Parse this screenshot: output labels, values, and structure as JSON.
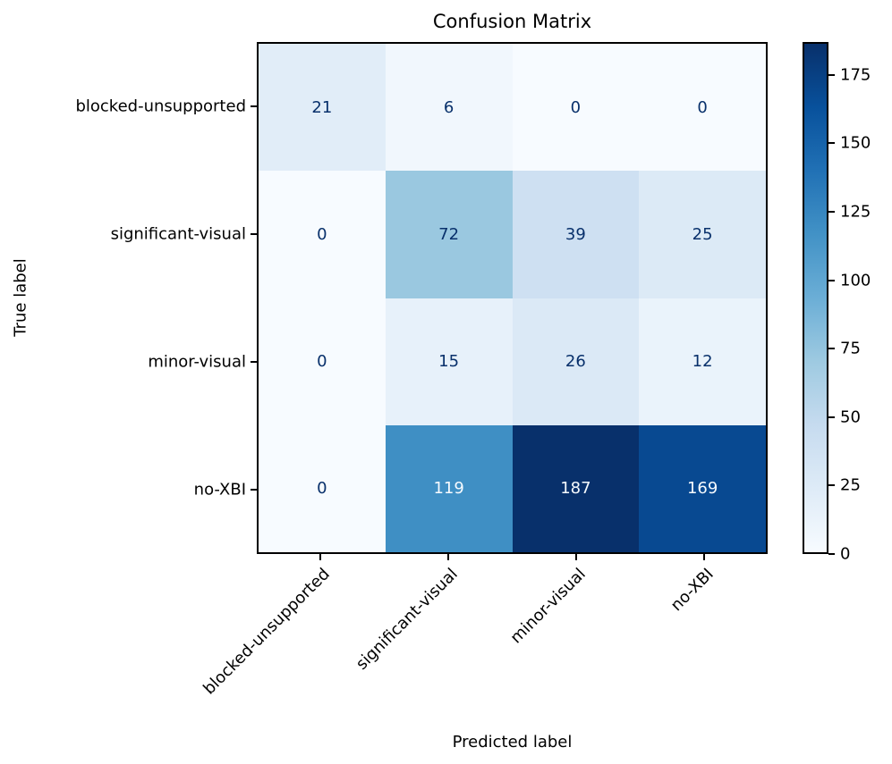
{
  "chart_data": {
    "type": "heatmap",
    "title": "Confusion Matrix",
    "xlabel": "Predicted label",
    "ylabel": "True label",
    "categories": [
      "blocked-unsupported",
      "significant-visual",
      "minor-visual",
      "no-XBI"
    ],
    "matrix": [
      [
        21,
        6,
        0,
        0
      ],
      [
        0,
        72,
        39,
        25
      ],
      [
        0,
        15,
        26,
        12
      ],
      [
        0,
        119,
        187,
        169
      ]
    ],
    "vmin": 0,
    "vmax": 187,
    "colormap": "Blues",
    "colormap_stops": [
      "#f7fbff",
      "#deebf7",
      "#c6dbef",
      "#9ecae1",
      "#6baed6",
      "#4292c6",
      "#2171b5",
      "#08519c",
      "#08306b"
    ],
    "colorbar_ticks": [
      0,
      25,
      50,
      75,
      100,
      125,
      150,
      175
    ],
    "text_color_dark": "#08306b",
    "text_color_light": "#f7fbff",
    "axis_color": "#000000",
    "legend_position": "right-colorbar",
    "grid": false
  }
}
